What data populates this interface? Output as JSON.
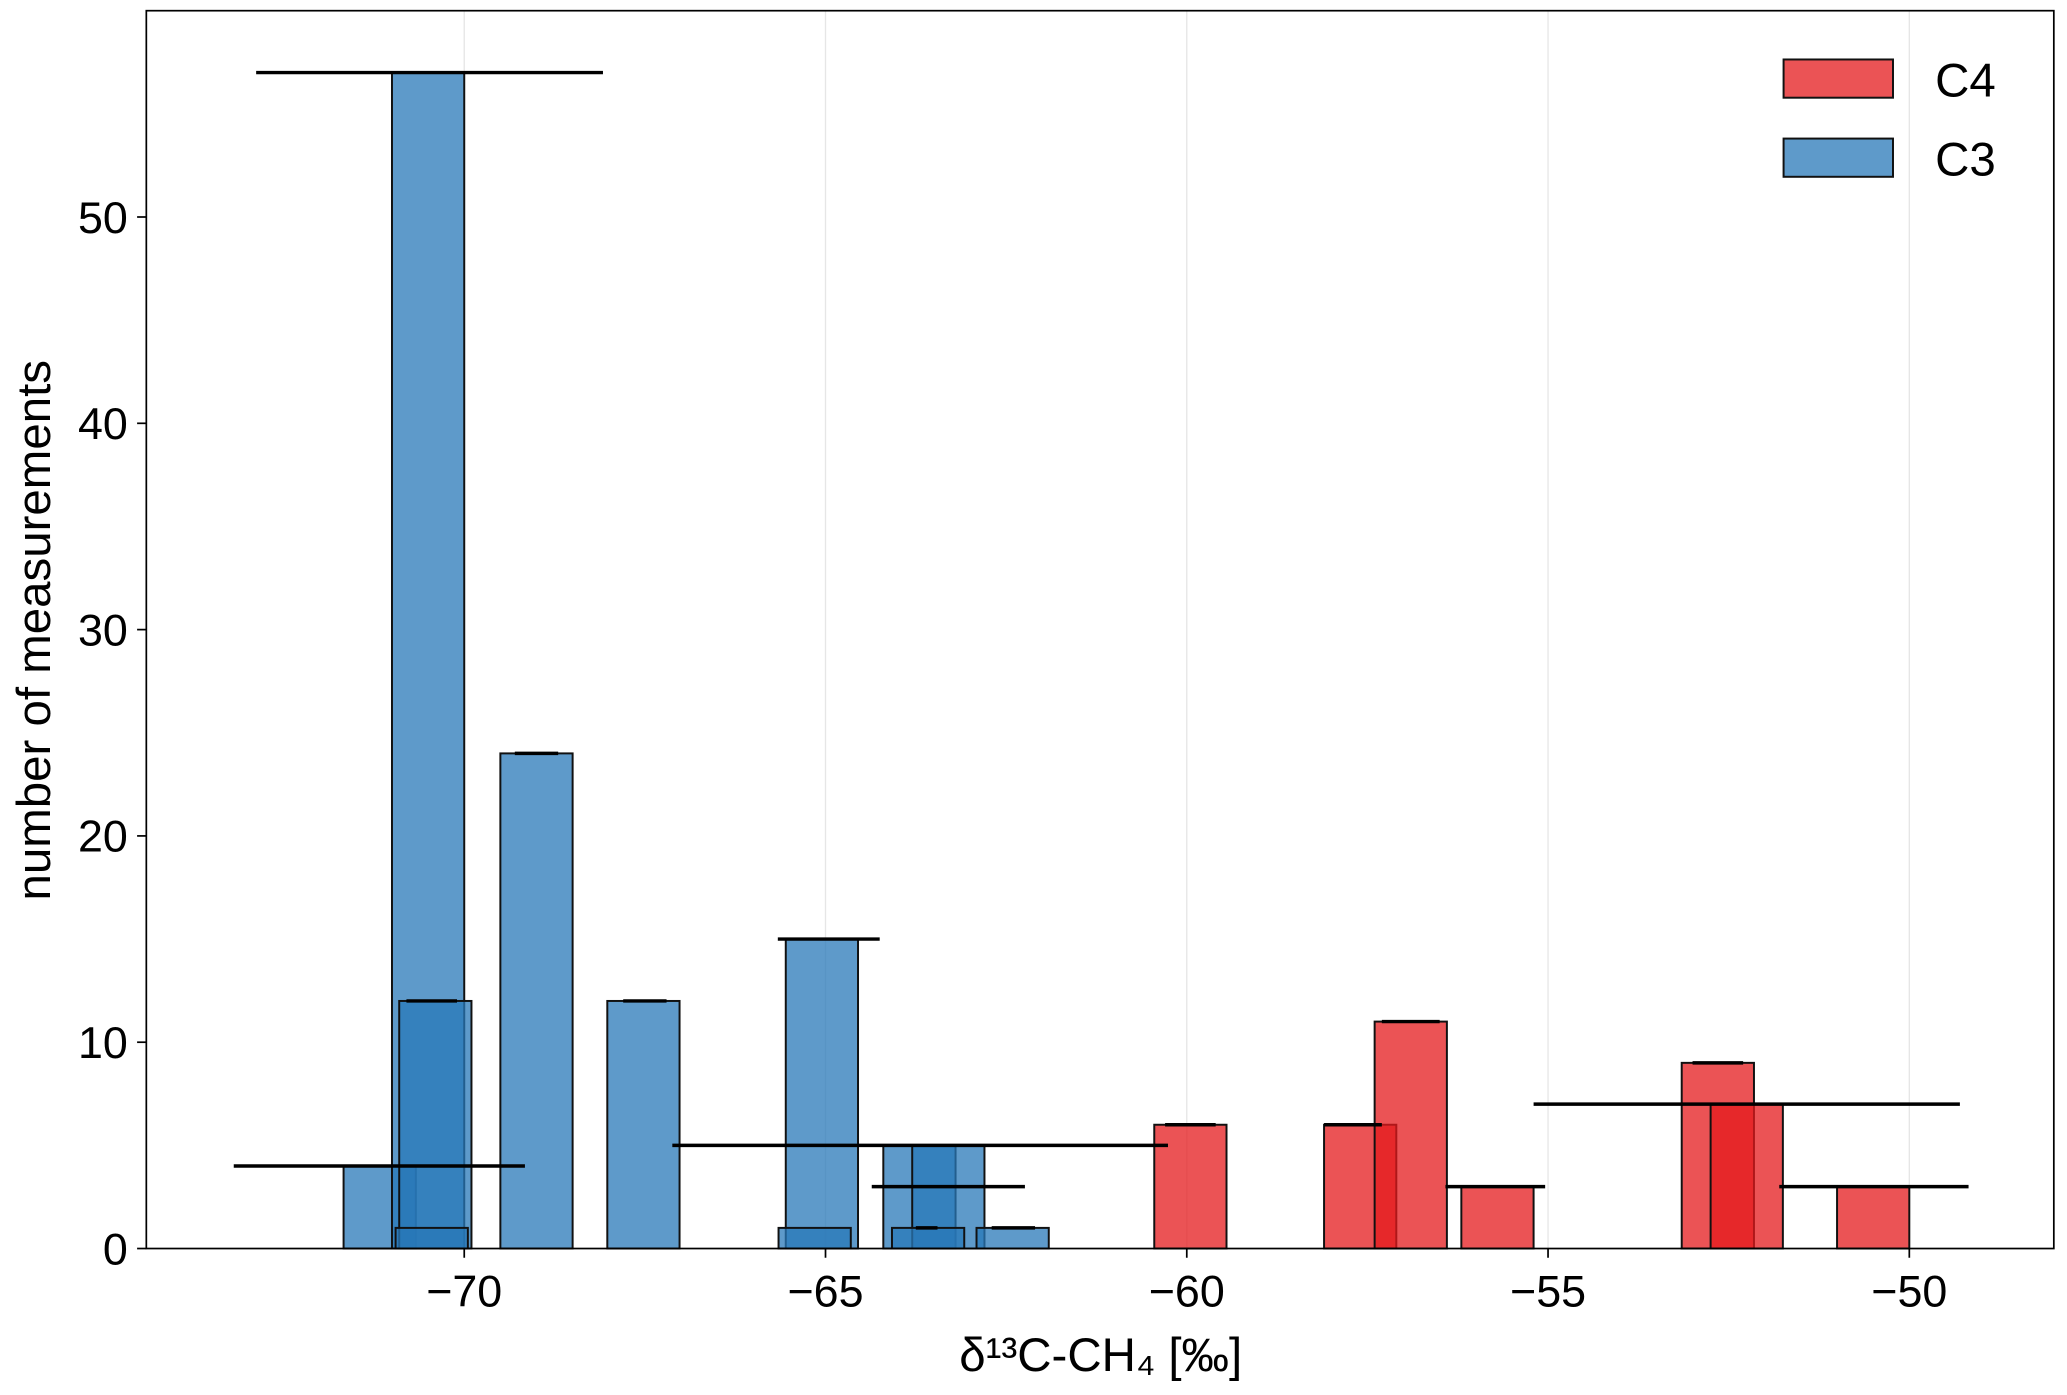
{
  "chart_data": {
    "type": "bar",
    "title": "",
    "xlabel": "δ¹³C-CH₄ [‰]",
    "xlabel_parts": {
      "main": "δ¹³C-CH",
      "sub": "4",
      "unit": " [‰]"
    },
    "ylabel": "number of measurements",
    "xlim": [
      -74.4,
      -48.0
    ],
    "ylim": [
      0,
      60
    ],
    "xticks": [
      -70,
      -65,
      -60,
      -55,
      -50
    ],
    "xtick_labels": [
      "−70",
      "−65",
      "−60",
      "−55",
      "−50"
    ],
    "yticks": [
      0,
      10,
      20,
      30,
      40,
      50
    ],
    "ytick_labels": [
      "0",
      "10",
      "20",
      "30",
      "40",
      "50"
    ],
    "grid": "vertical",
    "legend_position": "top-right",
    "bar_width": 1.0,
    "series": [
      {
        "name": "C4",
        "color": "#e41a1c",
        "bars": [
          {
            "x": -59.95,
            "y": 6
          },
          {
            "x": -57.6,
            "y": 6
          },
          {
            "x": -56.9,
            "y": 11
          },
          {
            "x": -55.7,
            "y": 3
          },
          {
            "x": -52.65,
            "y": 9
          },
          {
            "x": -52.25,
            "y": 7
          },
          {
            "x": -50.5,
            "y": 3
          }
        ],
        "error_bars": [
          {
            "y": 6,
            "xmin": -60.3,
            "xmax": -59.6
          },
          {
            "y": 6,
            "xmin": -58.1,
            "xmax": -57.3
          },
          {
            "y": 11,
            "xmin": -57.3,
            "xmax": -56.5
          },
          {
            "y": 3,
            "xmin": -56.42,
            "xmax": -55.04
          },
          {
            "y": 9,
            "xmin": -53.0,
            "xmax": -52.3
          },
          {
            "y": 7,
            "xmin": -55.2,
            "xmax": -49.3
          },
          {
            "y": 3,
            "xmin": -51.8,
            "xmax": -49.18
          }
        ]
      },
      {
        "name": "C3",
        "color": "#2878b8",
        "bars": [
          {
            "x": -71.17,
            "y": 4
          },
          {
            "x": -70.5,
            "y": 57
          },
          {
            "x": -70.4,
            "y": 12
          },
          {
            "x": -70.45,
            "y": 1
          },
          {
            "x": -69.0,
            "y": 24
          },
          {
            "x": -67.52,
            "y": 12
          },
          {
            "x": -65.05,
            "y": 15
          },
          {
            "x": -65.15,
            "y": 1
          },
          {
            "x": -63.7,
            "y": 5
          },
          {
            "x": -63.3,
            "y": 5
          },
          {
            "x": -63.58,
            "y": 1
          },
          {
            "x": -62.41,
            "y": 1
          }
        ],
        "error_bars": [
          {
            "y": 57,
            "xmin": -72.88,
            "xmax": -68.08
          },
          {
            "y": 4,
            "xmin": -73.19,
            "xmax": -69.16
          },
          {
            "y": 12,
            "xmin": -70.8,
            "xmax": -70.1
          },
          {
            "y": 24,
            "xmin": -69.3,
            "xmax": -68.7
          },
          {
            "y": 12,
            "xmin": -67.8,
            "xmax": -67.2
          },
          {
            "y": 15,
            "xmin": -65.66,
            "xmax": -64.25
          },
          {
            "y": 5,
            "xmin": -67.12,
            "xmax": -60.26
          },
          {
            "y": 3,
            "xmin": -64.36,
            "xmax": -62.24
          },
          {
            "y": 1,
            "xmin": -63.75,
            "xmax": -63.45
          },
          {
            "y": 1,
            "xmin": -62.7,
            "xmax": -62.1
          }
        ]
      }
    ]
  }
}
